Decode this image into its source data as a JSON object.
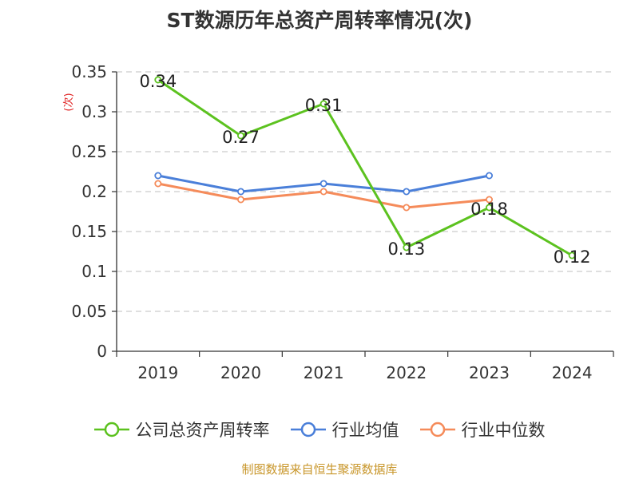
{
  "chart_data": {
    "type": "line",
    "title": "ST数源历年总资产周转率情况(次)",
    "ylabel": "(次)",
    "xlabel": "",
    "categories": [
      "2019",
      "2020",
      "2021",
      "2022",
      "2023",
      "2024"
    ],
    "ylim": [
      0,
      0.35
    ],
    "yticks": [
      "0",
      "0.05",
      "0.1",
      "0.15",
      "0.2",
      "0.25",
      "0.3",
      "0.35"
    ],
    "grid": true,
    "legend_position": "bottom",
    "series": [
      {
        "name": "公司总资产周转率",
        "color": "#5cc21f",
        "values": [
          0.34,
          0.27,
          0.31,
          0.13,
          0.18,
          0.12
        ],
        "labels": [
          "0.34",
          "0.27",
          "0.31",
          "0.13",
          "0.18",
          "0.12"
        ]
      },
      {
        "name": "行业均值",
        "color": "#4a7fd9",
        "values": [
          0.22,
          0.2,
          0.21,
          0.2,
          0.22,
          null
        ]
      },
      {
        "name": "行业中位数",
        "color": "#f58b5a",
        "values": [
          0.21,
          0.19,
          0.2,
          0.18,
          0.19,
          null
        ]
      }
    ],
    "source": "制图数据来自恒生聚源数据库"
  }
}
